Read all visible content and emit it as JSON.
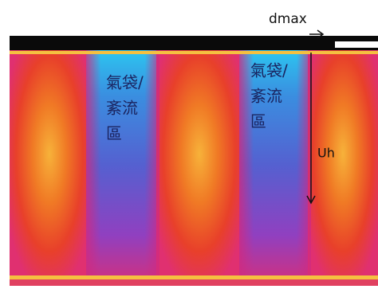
{
  "annotations": {
    "dmax": "dmax",
    "uh": "Uh"
  },
  "regions": [
    {
      "lines": [
        "氣袋/",
        "紊流",
        "區"
      ]
    },
    {
      "lines": [
        "氣袋/",
        "紊流",
        "區"
      ]
    }
  ]
}
